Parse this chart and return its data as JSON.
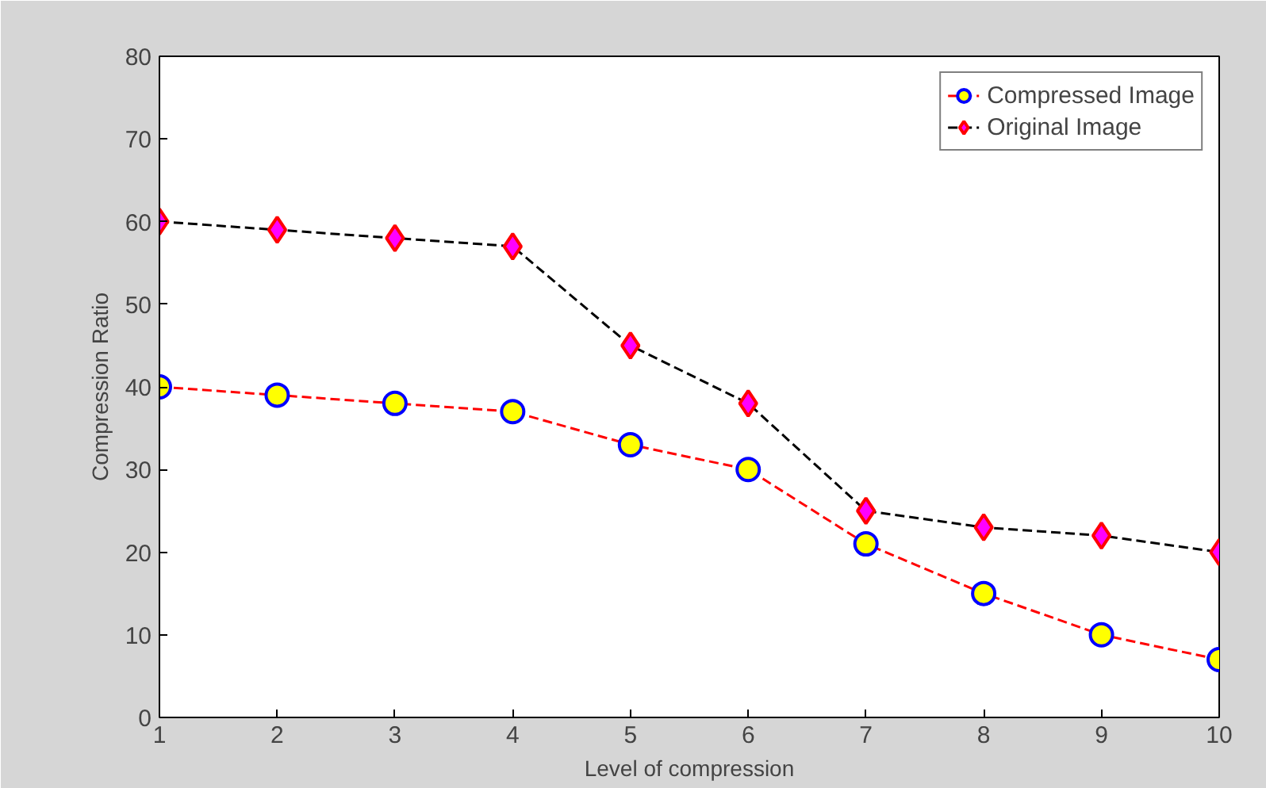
{
  "chart_data": {
    "type": "line",
    "xlabel": "Level of compression",
    "ylabel": "Compression Ratio",
    "x": [
      1,
      2,
      3,
      4,
      5,
      6,
      7,
      8,
      9,
      10
    ],
    "series": [
      {
        "name": "Compressed Image",
        "color": "#ff0000",
        "marker": "circle",
        "line_style": "dashed",
        "values": [
          40,
          39,
          38,
          37,
          33,
          30,
          21,
          15,
          10,
          7
        ]
      },
      {
        "name": "Original Image",
        "color": "#000000",
        "marker": "diamond",
        "line_style": "dashed",
        "values": [
          60,
          59,
          58,
          57,
          45,
          38,
          25,
          23,
          22,
          20
        ]
      }
    ],
    "xlim": [
      1,
      10
    ],
    "xticks": [
      1,
      2,
      3,
      4,
      5,
      6,
      7,
      8,
      9,
      10
    ],
    "ylim": [
      0,
      80
    ],
    "yticks": [
      0,
      10,
      20,
      30,
      40,
      50,
      60,
      70,
      80
    ],
    "grid": false,
    "legend": "top right"
  }
}
